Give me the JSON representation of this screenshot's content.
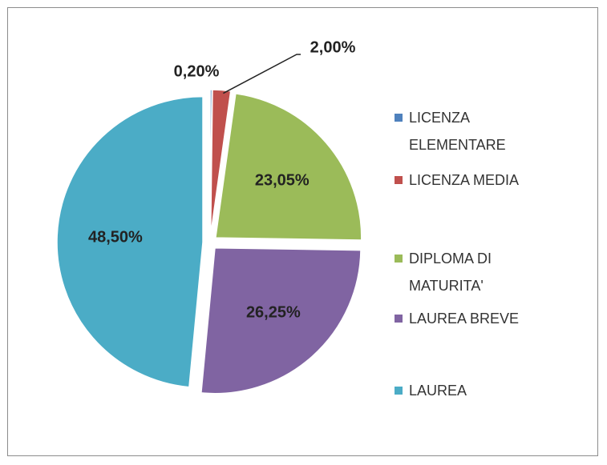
{
  "chart_data": {
    "type": "pie",
    "categories": [
      "LICENZA ELEMENTARE",
      "LICENZA MEDIA",
      "DIPLOMA DI MATURITA'",
      "LAUREA BREVE",
      "LAUREA"
    ],
    "values": [
      0.2,
      2,
      23.05,
      26.25,
      48.5
    ],
    "value_labels": [
      "0,20%",
      "2,00%",
      "23,05%",
      "26,25%",
      "48,50%"
    ],
    "colors": [
      "#4f81bd",
      "#c0504d",
      "#9bbb59",
      "#8064a2",
      "#4bacc6"
    ],
    "legend": "right"
  }
}
